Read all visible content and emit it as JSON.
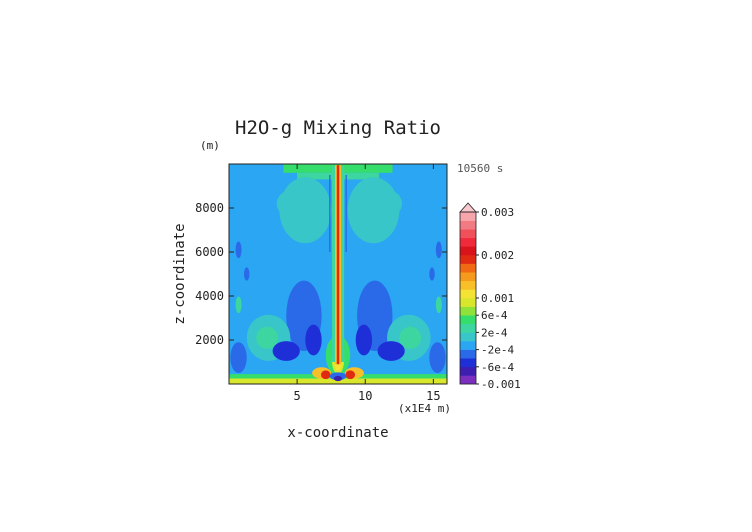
{
  "chart_data": {
    "type": "heatmap",
    "title": "H2O-g Mixing Ratio",
    "xlabel": "x-coordinate",
    "ylabel": "z-coordinate",
    "x_unit_label": "(x1E4 m)",
    "y_unit_label": "(m)",
    "time_label": "10560 s",
    "xlim": [
      0,
      16
    ],
    "ylim": [
      0,
      10000
    ],
    "x_ticks": [
      5,
      10,
      15
    ],
    "y_ticks": [
      2000,
      4000,
      6000,
      8000
    ],
    "x_tick_labels": [
      "5",
      "10",
      "15"
    ],
    "y_tick_labels": [
      "2000",
      "4000",
      "6000",
      "8000"
    ],
    "colorbar": {
      "levels": [
        -0.001,
        -0.0008,
        -0.0006,
        -0.0004,
        -0.0002,
        0,
        0.0002,
        0.0004,
        0.0006,
        0.0008,
        0.001,
        0.0012,
        0.0014,
        0.0016,
        0.0018,
        0.002,
        0.0022,
        0.0024,
        0.0026,
        0.0028,
        0.003
      ],
      "colors": [
        "#7a2fc0",
        "#3c1fb0",
        "#1e2fd8",
        "#2a6ae8",
        "#2aa6f2",
        "#39c6c8",
        "#3ed6a0",
        "#35de6a",
        "#8fe23a",
        "#d8e62c",
        "#f4e234",
        "#f8c028",
        "#f49a1c",
        "#f06a14",
        "#e02b12",
        "#d8141a",
        "#f02a3a",
        "#f0505a",
        "#f27a82",
        "#f6a6aa"
      ],
      "labeled_levels": [
        -0.001,
        -0.0006,
        -0.0002,
        0.0002,
        0.0006,
        0.001,
        0.002,
        0.003
      ],
      "tick_labels": [
        "-0.001",
        "-6e-4",
        "-2e-4",
        "2e-4",
        "6e-4",
        "0.001",
        "0.002",
        "0.003"
      ],
      "extend": "max"
    },
    "field": {
      "background_value": -0.0001,
      "features": [
        {
          "kind": "band",
          "z": [
            0,
            250
          ],
          "x": [
            0,
            16
          ],
          "value": 0.0009
        },
        {
          "kind": "band",
          "z": [
            250,
            450
          ],
          "x": [
            0,
            16
          ],
          "value": 0.0004
        },
        {
          "kind": "band",
          "z": [
            9600,
            10000
          ],
          "x": [
            4,
            12
          ],
          "value": 0.0005
        },
        {
          "kind": "band",
          "z": [
            9300,
            9600
          ],
          "x": [
            5,
            11
          ],
          "value": 0.0002
        },
        {
          "kind": "blob",
          "cx": 5.6,
          "cz": 7900,
          "rx": 1.9,
          "rz": 1500,
          "value": 0.0001
        },
        {
          "kind": "blob",
          "cx": 10.6,
          "cz": 7900,
          "rx": 1.9,
          "rz": 1500,
          "value": 0.0001
        },
        {
          "kind": "blob",
          "cx": 4.5,
          "cz": 8200,
          "rx": 1.0,
          "rz": 600,
          "value": 0.0001
        },
        {
          "kind": "blob",
          "cx": 11.7,
          "cz": 8200,
          "rx": 1.0,
          "rz": 600,
          "value": 0.0001
        },
        {
          "kind": "blob",
          "cx": 5.5,
          "cz": 3100,
          "rx": 1.3,
          "rz": 1600,
          "value": -0.0003
        },
        {
          "kind": "blob",
          "cx": 10.7,
          "cz": 3100,
          "rx": 1.3,
          "rz": 1600,
          "value": -0.0003
        },
        {
          "kind": "blob",
          "cx": 2.9,
          "cz": 2100,
          "rx": 1.6,
          "rz": 1050,
          "value": 0.0001
        },
        {
          "kind": "blob",
          "cx": 13.2,
          "cz": 2100,
          "rx": 1.6,
          "rz": 1050,
          "value": 0.0001
        },
        {
          "kind": "blob",
          "cx": 2.8,
          "cz": 2100,
          "rx": 0.8,
          "rz": 500,
          "value": 0.0003
        },
        {
          "kind": "blob",
          "cx": 13.3,
          "cz": 2100,
          "rx": 0.8,
          "rz": 500,
          "value": 0.0003
        },
        {
          "kind": "blob",
          "cx": 4.2,
          "cz": 1500,
          "rx": 1.0,
          "rz": 450,
          "value": -0.0006
        },
        {
          "kind": "blob",
          "cx": 11.9,
          "cz": 1500,
          "rx": 1.0,
          "rz": 450,
          "value": -0.0006
        },
        {
          "kind": "blob",
          "cx": 6.2,
          "cz": 2000,
          "rx": 0.6,
          "rz": 700,
          "value": -0.0005
        },
        {
          "kind": "blob",
          "cx": 9.9,
          "cz": 2000,
          "rx": 0.6,
          "rz": 700,
          "value": -0.0005
        },
        {
          "kind": "blob",
          "cx": 0.7,
          "cz": 1200,
          "rx": 0.6,
          "rz": 700,
          "value": -0.0004
        },
        {
          "kind": "blob",
          "cx": 15.3,
          "cz": 1200,
          "rx": 0.6,
          "rz": 700,
          "value": -0.0004
        },
        {
          "kind": "blob",
          "cx": 0.7,
          "cz": 6100,
          "rx": 0.22,
          "rz": 380,
          "value": -0.0004
        },
        {
          "kind": "blob",
          "cx": 15.4,
          "cz": 6100,
          "rx": 0.22,
          "rz": 380,
          "value": -0.0004
        },
        {
          "kind": "blob",
          "cx": 0.7,
          "cz": 3600,
          "rx": 0.22,
          "rz": 380,
          "value": 0.0002
        },
        {
          "kind": "blob",
          "cx": 15.4,
          "cz": 3600,
          "rx": 0.22,
          "rz": 380,
          "value": 0.0002
        },
        {
          "kind": "blob",
          "cx": 1.3,
          "cz": 5000,
          "rx": 0.2,
          "rz": 300,
          "value": -0.0003
        },
        {
          "kind": "blob",
          "cx": 14.9,
          "cz": 5000,
          "rx": 0.2,
          "rz": 300,
          "value": -0.0003
        },
        {
          "kind": "blob",
          "cx": 8.0,
          "cz": 1300,
          "rx": 0.9,
          "rz": 900,
          "value": 0.0004
        },
        {
          "kind": "blob",
          "cx": 8.0,
          "cz": 1100,
          "rx": 0.45,
          "rz": 650,
          "value": 0.0008
        },
        {
          "kind": "blob",
          "cx": 8.0,
          "cz": 950,
          "rx": 0.25,
          "rz": 350,
          "value": 0.0011
        },
        {
          "kind": "blob",
          "cx": 6.8,
          "cz": 500,
          "rx": 0.7,
          "rz": 260,
          "value": 0.0012
        },
        {
          "kind": "blob",
          "cx": 9.2,
          "cz": 500,
          "rx": 0.7,
          "rz": 260,
          "value": 0.0012
        },
        {
          "kind": "blob",
          "cx": 7.1,
          "cz": 420,
          "rx": 0.35,
          "rz": 200,
          "value": 0.0019
        },
        {
          "kind": "blob",
          "cx": 8.9,
          "cz": 420,
          "rx": 0.35,
          "rz": 200,
          "value": 0.0019
        },
        {
          "kind": "blob",
          "cx": 8.0,
          "cz": 350,
          "rx": 0.6,
          "rz": 180,
          "value": -0.0003
        },
        {
          "kind": "blob",
          "cx": 8.0,
          "cz": 250,
          "rx": 0.3,
          "rz": 120,
          "value": -0.0007
        },
        {
          "kind": "vline",
          "x": 8.0,
          "z": [
            1000,
            9900
          ],
          "halfwidth": 0.45,
          "value": 0.0002
        },
        {
          "kind": "vline",
          "x": 8.0,
          "z": [
            900,
            9950
          ],
          "halfwidth": 0.22,
          "value": 0.0012
        },
        {
          "kind": "vline",
          "x": 8.0,
          "z": [
            900,
            9950
          ],
          "halfwidth": 0.09,
          "value": 0.0019
        },
        {
          "kind": "vline",
          "x": 7.4,
          "z": [
            6000,
            9500
          ],
          "halfwidth": 0.05,
          "value": -0.0004
        },
        {
          "kind": "vline",
          "x": 8.6,
          "z": [
            6000,
            9500
          ],
          "halfwidth": 0.05,
          "value": -0.0004
        }
      ]
    }
  }
}
